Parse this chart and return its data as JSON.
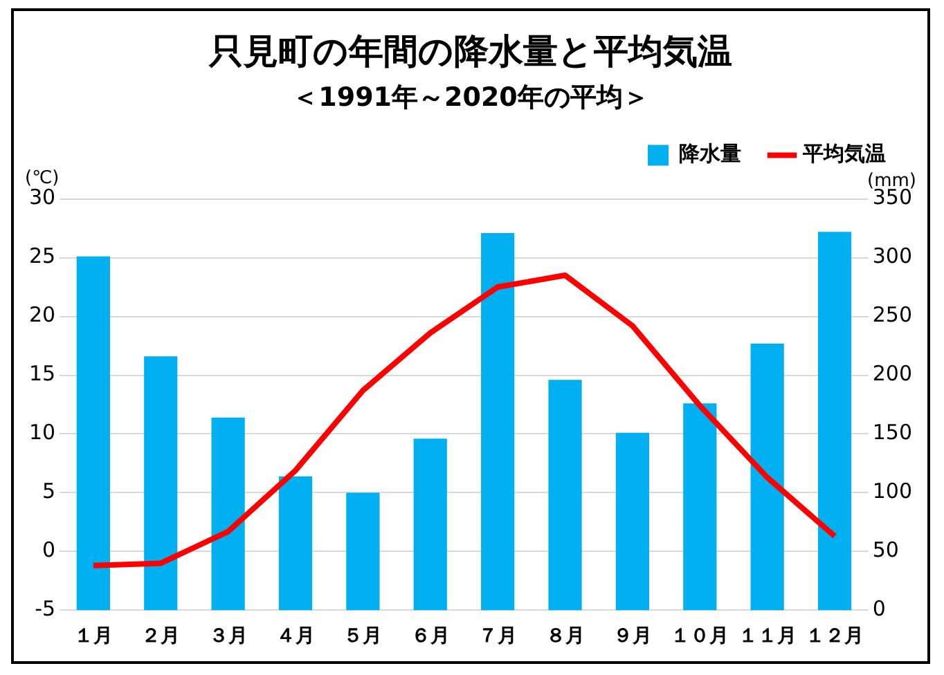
{
  "chart_data": {
    "type": "bar",
    "title": "只見町の年間の降水量と平均気温",
    "subtitle": "＜1991年～2020年の平均＞",
    "ylabel": "(℃)",
    "y2label": "(mm)",
    "categories": [
      "１月",
      "２月",
      "３月",
      "４月",
      "５月",
      "６月",
      "７月",
      "８月",
      "９月",
      "１０月",
      "１１月",
      "１２月"
    ],
    "series": [
      {
        "name": "降水量",
        "axis": "y2",
        "color": "#00b0f0",
        "values": [
          301,
          216,
          164,
          114,
          100,
          146,
          321,
          196,
          151,
          176,
          227,
          322
        ]
      },
      {
        "name": "平均気温",
        "type": "line",
        "color": "#ff0000",
        "values": [
          -1.2,
          -1.0,
          1.7,
          6.9,
          13.7,
          18.6,
          22.5,
          23.5,
          19.2,
          12.4,
          6.3,
          1.3
        ]
      }
    ],
    "ylim": [
      -5,
      30
    ],
    "yticks": [
      -5,
      0,
      5,
      10,
      15,
      20,
      25,
      30
    ],
    "y2lim": [
      0,
      350
    ],
    "y2ticks": [
      0,
      50,
      100,
      150,
      200,
      250,
      300,
      350
    ],
    "grid": "y",
    "legend": "top right",
    "marker": "none"
  }
}
